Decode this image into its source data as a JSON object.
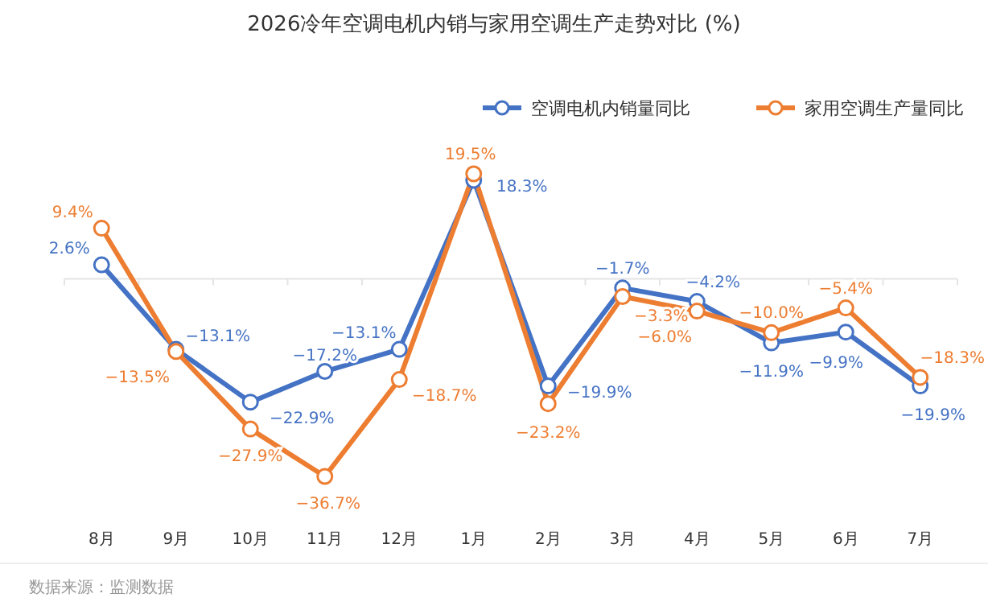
{
  "chart_data": {
    "type": "line",
    "title": "2026冷年空调电机内销与家用空调生产走势对比 (%)",
    "categories": [
      "8月",
      "9月",
      "10月",
      "11月",
      "12月",
      "1月",
      "2月",
      "3月",
      "4月",
      "5月",
      "6月",
      "7月"
    ],
    "legend": "top right",
    "marker": "circle",
    "line_style": "solid",
    "grid": false,
    "series": [
      {
        "name": "空调电机内销量同比",
        "color": "#4472c4",
        "values": [
          2.6,
          -13.1,
          -22.9,
          -17.2,
          -13.1,
          18.3,
          -19.9,
          -1.7,
          -4.2,
          -11.9,
          -9.9,
          -19.9
        ],
        "value_labels": [
          "2.6%",
          "−13.1%",
          "−22.9%",
          "−17.2%",
          "−13.1%",
          "18.3%",
          "−19.9%",
          "−1.7%",
          "−4.2%",
          "−11.9%",
          "−9.9%",
          "−19.9%"
        ]
      },
      {
        "name": "家用空调生产量同比",
        "color": "#ed7d31",
        "values": [
          9.4,
          -13.5,
          -27.9,
          -36.7,
          -18.7,
          19.5,
          -23.2,
          -3.3,
          -6.0,
          -10.0,
          -5.4,
          -18.3
        ],
        "value_labels": [
          "9.4%",
          "−13.5%",
          "−27.9%",
          "−36.7%",
          "−18.7%",
          "19.5%",
          "−23.2%",
          "−3.3%",
          "−6.0%",
          "−10.0%",
          "−5.4%",
          "−18.3%"
        ]
      }
    ],
    "annotations": [
      "数据来源：监测数据"
    ]
  }
}
